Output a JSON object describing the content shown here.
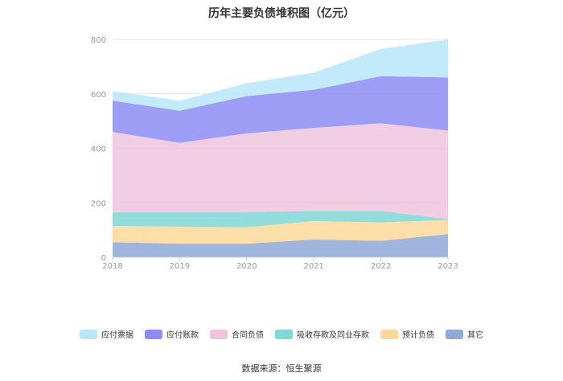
{
  "title": "历年主要负债堆积图（亿元）",
  "source": "数据来源：恒生聚源",
  "chart_data": {
    "type": "area",
    "stacked": true,
    "title": "历年主要负债堆积图（亿元）",
    "x": [
      "2018",
      "2019",
      "2020",
      "2021",
      "2022",
      "2023"
    ],
    "ylim": [
      0,
      800
    ],
    "yticks": [
      0,
      200,
      400,
      600,
      800
    ],
    "grid": true,
    "legend_position": "bottom",
    "series": [
      {
        "name": "其它",
        "color": "#8fa8d8",
        "values": [
          55,
          50,
          50,
          65,
          60,
          85
        ]
      },
      {
        "name": "预计负债",
        "color": "#fbd89a",
        "values": [
          60,
          62,
          60,
          68,
          68,
          52
        ]
      },
      {
        "name": "吸收存款及同业存款",
        "color": "#7fd7d6",
        "values": [
          50,
          53,
          55,
          37,
          42,
          3
        ]
      },
      {
        "name": "合同负债",
        "color": "#efc4df",
        "values": [
          295,
          255,
          290,
          305,
          322,
          325
        ]
      },
      {
        "name": "应付账款",
        "color": "#8d8cf4",
        "values": [
          115,
          118,
          137,
          140,
          173,
          195
        ]
      },
      {
        "name": "应付票据",
        "color": "#b9e6f9",
        "values": [
          35,
          37,
          47,
          63,
          100,
          140
        ]
      }
    ]
  }
}
